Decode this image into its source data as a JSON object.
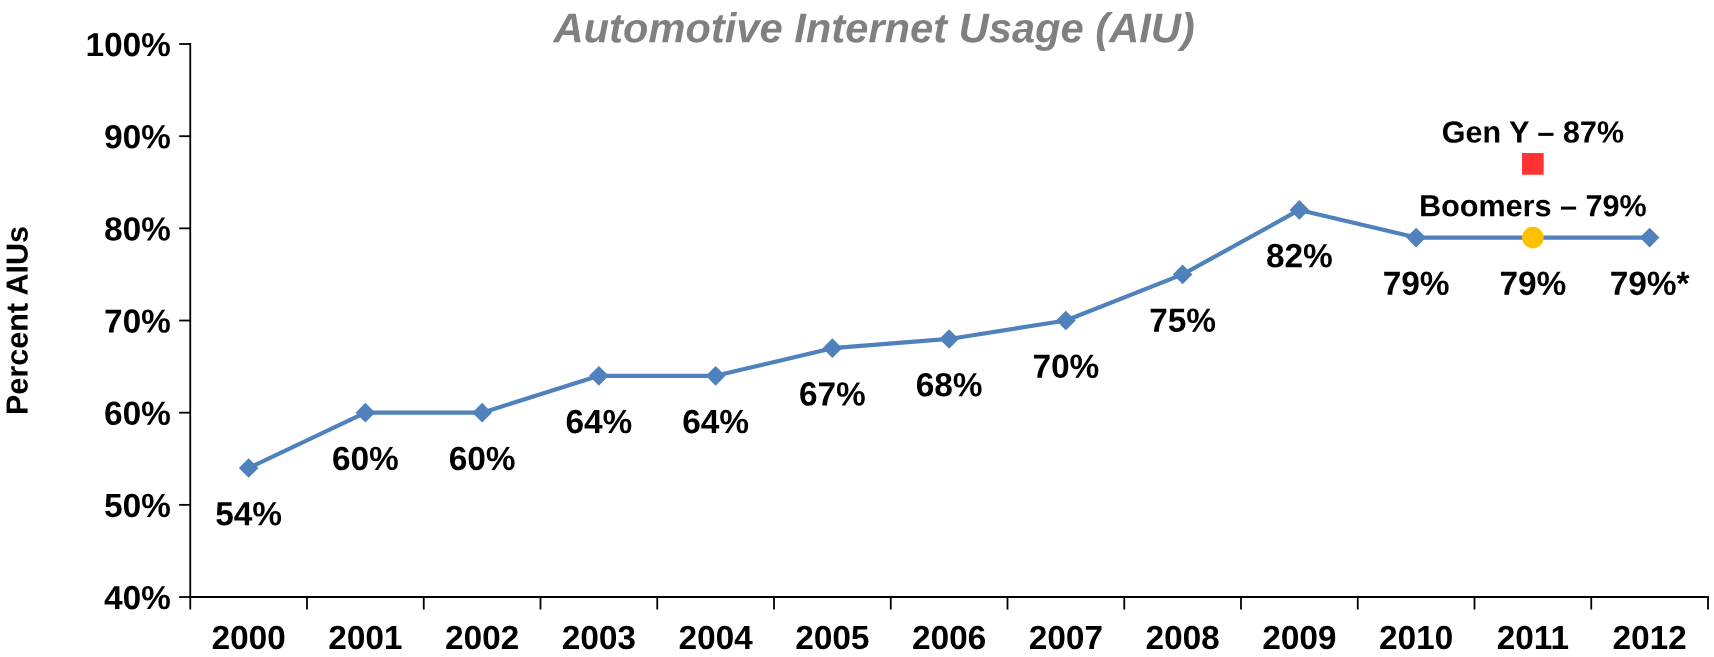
{
  "chart_data": {
    "type": "line",
    "title": "Automotive Internet Usage (AIU)",
    "ylabel": "Percent AIUs",
    "categories": [
      "2000",
      "2001",
      "2002",
      "2003",
      "2004",
      "2005",
      "2006",
      "2007",
      "2008",
      "2009",
      "2010",
      "2011",
      "2012"
    ],
    "ylim": [
      40,
      100
    ],
    "yticks": [
      {
        "value": 40,
        "label": "40%"
      },
      {
        "value": 50,
        "label": "50%"
      },
      {
        "value": 60,
        "label": "60%"
      },
      {
        "value": 70,
        "label": "70%"
      },
      {
        "value": 80,
        "label": "80%"
      },
      {
        "value": 90,
        "label": "90%"
      },
      {
        "value": 100,
        "label": "100%"
      }
    ],
    "grid": false,
    "legend": false,
    "line_style": "solid",
    "series": [
      {
        "color": "#4f81bd",
        "marker": "diamond",
        "values": [
          54,
          60,
          60,
          64,
          64,
          67,
          68,
          70,
          75,
          82,
          79,
          79,
          79
        ],
        "value_labels": [
          "54%",
          "60%",
          "60%",
          "64%",
          "64%",
          "67%",
          "68%",
          "70%",
          "75%",
          "82%",
          "79%",
          "79%",
          "79%*"
        ]
      },
      {
        "name": "Gen Y – 87%",
        "type": "scatter",
        "values": [
          null,
          null,
          null,
          null,
          null,
          null,
          null,
          null,
          null,
          null,
          null,
          87,
          null
        ],
        "color": "#ff3333",
        "marker": "square"
      },
      {
        "name": "Boomers – 79%",
        "type": "scatter",
        "values": [
          null,
          null,
          null,
          null,
          null,
          null,
          null,
          null,
          null,
          null,
          null,
          79,
          null
        ],
        "color": "#ffc000",
        "marker": "circle"
      }
    ]
  }
}
